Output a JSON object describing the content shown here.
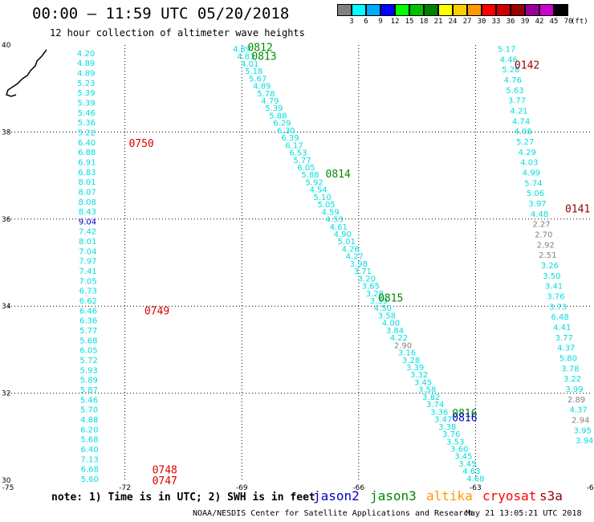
{
  "title": "00:00 – 11:59 UTC 05/20/2018",
  "subtitle": "12 hour collection of altimeter wave heights",
  "colorbar": {
    "unit": "(ft)",
    "levels": [
      {
        "label": "3",
        "color": "#808080"
      },
      {
        "label": "6",
        "color": "#00ffff"
      },
      {
        "label": "9",
        "color": "#00aaff"
      },
      {
        "label": "12",
        "color": "#0000ff"
      },
      {
        "label": "15",
        "color": "#00ff00"
      },
      {
        "label": "18",
        "color": "#00c000"
      },
      {
        "label": "21",
        "color": "#008000"
      },
      {
        "label": "24",
        "color": "#ffff00"
      },
      {
        "label": "27",
        "color": "#ffcc00"
      },
      {
        "label": "30",
        "color": "#ff9900"
      },
      {
        "label": "33",
        "color": "#ff0000"
      },
      {
        "label": "36",
        "color": "#cc0000"
      },
      {
        "label": "39",
        "color": "#990000"
      },
      {
        "label": "42",
        "color": "#990099"
      },
      {
        "label": "45",
        "color": "#cc00cc"
      },
      {
        "label": "70",
        "color": "#000000"
      }
    ]
  },
  "note": "note:  1) Time is in UTC;  2) SWH is in feet",
  "legend": [
    {
      "name": "jason2",
      "color": "#0000cc"
    },
    {
      "name": "jason3",
      "color": "#008800"
    },
    {
      "name": "altika",
      "color": "#ff9900"
    },
    {
      "name": "cryosat",
      "color": "#ff0000"
    },
    {
      "name": "s3a",
      "color": "#990000"
    }
  ],
  "footer_left": "NOAA/NESDIS Center for Satellite Applications and Research",
  "footer_right": "May 21 13:05:21 UTC 2018",
  "chart_data": {
    "type": "scatter",
    "xlim": [
      -75,
      -60
    ],
    "ylim": [
      30,
      40
    ],
    "x_ticks": [
      -75,
      -72,
      -69,
      -66,
      -63,
      -60
    ],
    "y_ticks": [
      30,
      32,
      34,
      36,
      38,
      40
    ],
    "x_tick_labels": [
      "-75",
      "-72",
      "-69",
      "-66",
      "-63",
      "-60"
    ],
    "y_tick_labels": [
      "30",
      "32",
      "34",
      "36",
      "38",
      "40"
    ],
    "grid": true,
    "tracks": [
      {
        "start": [
          -73.0,
          39.8
        ],
        "end": [
          -72.9,
          30.02
        ],
        "colors": [
          "#00dddd"
        ],
        "values": [
          "4.20",
          "4.89",
          "4.89",
          "5.23",
          "5.39",
          "5.39",
          "5.46",
          "5.36",
          "5.22",
          "6.40",
          "6.88",
          "6.91",
          "6.83",
          "8.01",
          "8.07",
          "8.08",
          "8.43",
          "9.04",
          "7.42",
          "8.01",
          "7.04",
          "7.97",
          "7.41",
          "7.05",
          "6.73",
          "6.62",
          "6.46",
          "6.36",
          "5.77",
          "5.68",
          "6.05",
          "5.72",
          "5.93",
          "5.89",
          "5.87",
          "5.46",
          "5.70",
          "4.88",
          "6.20",
          "5.68",
          "6.40",
          "7.13",
          "6.68",
          "5.60"
        ],
        "special": {
          "17": "#0000cc"
        }
      },
      {
        "start": [
          -69.0,
          39.9
        ],
        "end": [
          -63.0,
          30.03
        ],
        "colors": [
          "#00dddd"
        ],
        "values": [
          "4.89",
          "4.83",
          "4.01",
          "5.18",
          "5.67",
          "4.89",
          "5.78",
          "4.79",
          "5.39",
          "5.88",
          "6.29",
          "6.30",
          "6.39",
          "6.17",
          "6.53",
          "5.77",
          "6.05",
          "5.88",
          "5.92",
          "4.54",
          "5.10",
          "5.05",
          "4.59",
          "4.53",
          "4.61",
          "4.90",
          "5.01",
          "4.26",
          "4.27",
          "3.98",
          "3.71",
          "3.20",
          "3.65",
          "3.28",
          "3.39",
          "4.50",
          "3.58",
          "4.00",
          "3.84",
          "4.22",
          "2.90",
          "3.16",
          "3.28",
          "3.39",
          "3.32",
          "3.45",
          "3.58",
          "3.82",
          "3.74",
          "3.36",
          "3.47",
          "3.38",
          "3.76",
          "3.53",
          "3.60",
          "3.45",
          "3.45",
          "4.63",
          "4.68"
        ],
        "special": {
          "40": "#808080"
        }
      },
      {
        "start": [
          -62.2,
          39.9
        ],
        "end": [
          -60.2,
          30.9
        ],
        "colors": [
          "#00dddd"
        ],
        "values": [
          "5.17",
          "4.46",
          "5.28",
          "4.76",
          "5.63",
          "3.77",
          "4.21",
          "4.74",
          "4.98",
          "5.27",
          "4.29",
          "4.03",
          "4.99",
          "5.74",
          "5.06",
          "3.97",
          "4.48",
          "2.27",
          "2.70",
          "2.92",
          "2.51",
          "3.26",
          "3.50",
          "3.41",
          "3.76",
          "3.73",
          "6.48",
          "4.41",
          "3.77",
          "4.37",
          "5.80",
          "3.78",
          "3.22",
          "3.99",
          "2.89",
          "4.37",
          "2.94",
          "3.95",
          "3.94"
        ],
        "special": {
          "17": "#808080",
          "18": "#808080",
          "19": "#808080",
          "20": "#808080",
          "34": "#808080",
          "36": "#808080"
        }
      }
    ],
    "annotations": [
      {
        "text": "0750",
        "lon": -71.9,
        "lat": 37.75,
        "color": "#dd0000"
      },
      {
        "text": "0749",
        "lon": -71.5,
        "lat": 33.9,
        "color": "#dd0000"
      },
      {
        "text": "0748",
        "lon": -71.3,
        "lat": 30.25,
        "color": "#dd0000"
      },
      {
        "text": "0747",
        "lon": -71.3,
        "lat": 30.0,
        "color": "#dd0000"
      },
      {
        "text": "0812",
        "lon": -68.85,
        "lat": 39.95,
        "color": "#008800"
      },
      {
        "text": "0813",
        "lon": -68.75,
        "lat": 39.75,
        "color": "#008800"
      },
      {
        "text": "0814",
        "lon": -66.85,
        "lat": 37.05,
        "color": "#008800"
      },
      {
        "text": "0815",
        "lon": -65.5,
        "lat": 34.2,
        "color": "#008800"
      },
      {
        "text": "0816",
        "lon": -63.6,
        "lat": 31.55,
        "color": "#008800"
      },
      {
        "text": "0816",
        "lon": -63.6,
        "lat": 31.45,
        "color": "#0000cc"
      },
      {
        "text": "0142",
        "lon": -62.0,
        "lat": 39.55,
        "color": "#990000"
      },
      {
        "text": "0141",
        "lon": -60.7,
        "lat": 36.25,
        "color": "#990000"
      }
    ]
  }
}
